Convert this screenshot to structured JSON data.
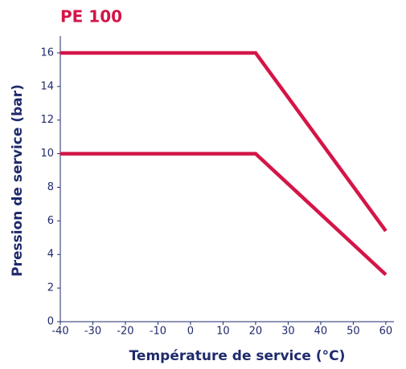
{
  "chart_data": {
    "type": "line",
    "title": "PE 100",
    "xlabel": "Température de service (°C)",
    "ylabel": "Pression de service (bar)",
    "x": [
      -40,
      20,
      60
    ],
    "series": [
      {
        "color": "#d41548",
        "values": [
          16,
          16,
          5.4
        ]
      },
      {
        "color": "#d41548",
        "values": [
          10,
          10,
          2.8
        ]
      }
    ],
    "xlim": [
      -40,
      62.5
    ],
    "xticks": [
      -40,
      -30,
      -20,
      -10,
      0,
      10,
      20,
      30,
      40,
      50,
      60
    ],
    "ylim": [
      0,
      17
    ],
    "yticks": [
      0,
      2,
      4,
      6,
      8,
      10,
      12,
      14,
      16
    ],
    "grid": false
  }
}
